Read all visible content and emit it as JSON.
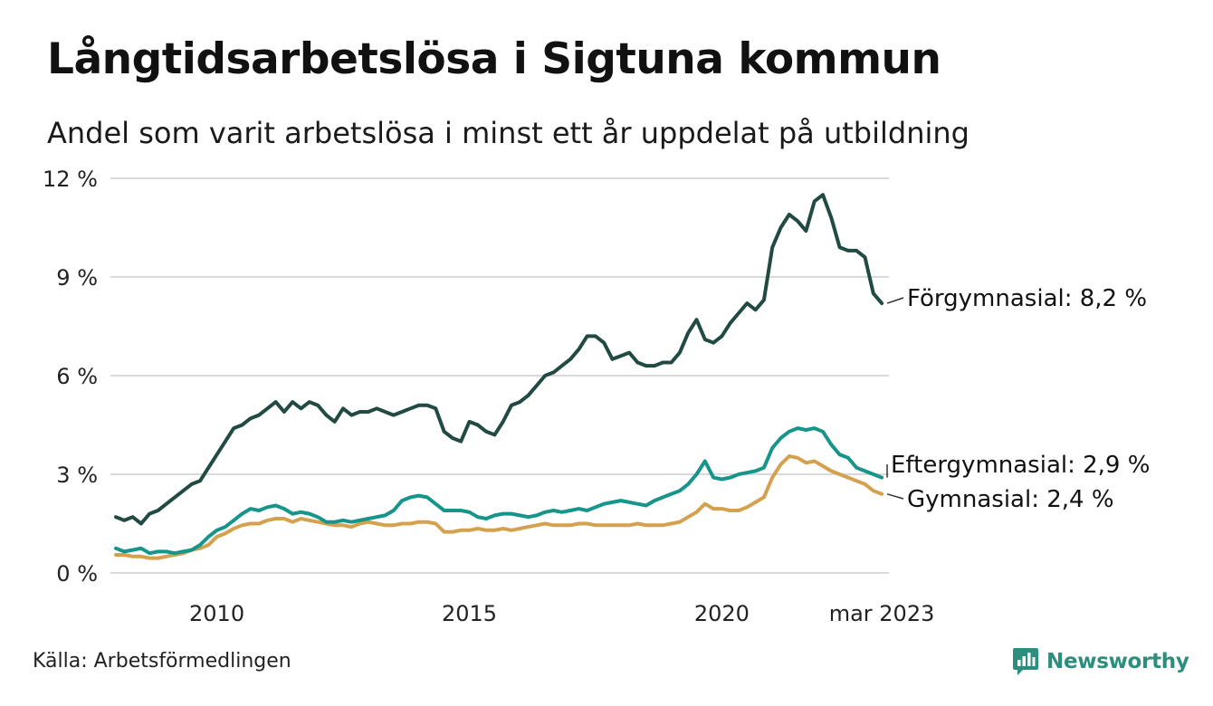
{
  "title": "Långtidsarbetslösa i Sigtuna kommun",
  "subtitle": "Andel som varit arbetslösa i minst ett år uppdelat på utbildning",
  "source": "Källa: Arbetsförmedlingen",
  "brand": "Newsworthy",
  "colors": {
    "forgymnasial": "#214a43",
    "eftergymnasial": "#17958a",
    "gymnasial": "#d4a14e",
    "grid": "#d9d9d9",
    "brand": "#2c8f7e"
  },
  "chart_data": {
    "type": "line",
    "title": "Långtidsarbetslösa i Sigtuna kommun",
    "subtitle": "Andel som varit arbetslösa i minst ett år uppdelat på utbildning",
    "xlabel": "",
    "ylabel": "",
    "ylim": [
      0,
      12
    ],
    "xlim": [
      "2008-01",
      "2023-03"
    ],
    "yticks": [
      0,
      3,
      6,
      9,
      12
    ],
    "ytick_labels": [
      "0 %",
      "3 %",
      "6 %",
      "9 %",
      "12 %"
    ],
    "xticks": [
      "2010-01",
      "2015-01",
      "2020-01",
      "2023-03"
    ],
    "xtick_labels": [
      "2010",
      "2015",
      "2020",
      "mar 2023"
    ],
    "grid": true,
    "legend": "end-labels",
    "series": [
      {
        "name": "Förgymnasial",
        "end_label": "Förgymnasial: 8,2 %",
        "points": [
          [
            "2008-01",
            1.7
          ],
          [
            "2008-03",
            1.6
          ],
          [
            "2008-05",
            1.7
          ],
          [
            "2008-07",
            1.5
          ],
          [
            "2008-09",
            1.8
          ],
          [
            "2008-11",
            1.9
          ],
          [
            "2009-01",
            2.1
          ],
          [
            "2009-03",
            2.3
          ],
          [
            "2009-05",
            2.5
          ],
          [
            "2009-07",
            2.7
          ],
          [
            "2009-09",
            2.8
          ],
          [
            "2009-11",
            3.2
          ],
          [
            "2010-01",
            3.6
          ],
          [
            "2010-03",
            4.0
          ],
          [
            "2010-05",
            4.4
          ],
          [
            "2010-07",
            4.5
          ],
          [
            "2010-09",
            4.7
          ],
          [
            "2010-11",
            4.8
          ],
          [
            "2011-01",
            5.0
          ],
          [
            "2011-03",
            5.2
          ],
          [
            "2011-05",
            4.9
          ],
          [
            "2011-07",
            5.2
          ],
          [
            "2011-09",
            5.0
          ],
          [
            "2011-11",
            5.2
          ],
          [
            "2012-01",
            5.1
          ],
          [
            "2012-03",
            4.8
          ],
          [
            "2012-05",
            4.6
          ],
          [
            "2012-07",
            5.0
          ],
          [
            "2012-09",
            4.8
          ],
          [
            "2012-11",
            4.9
          ],
          [
            "2013-01",
            4.9
          ],
          [
            "2013-03",
            5.0
          ],
          [
            "2013-05",
            4.9
          ],
          [
            "2013-07",
            4.8
          ],
          [
            "2013-09",
            4.9
          ],
          [
            "2013-11",
            5.0
          ],
          [
            "2014-01",
            5.1
          ],
          [
            "2014-03",
            5.1
          ],
          [
            "2014-05",
            5.0
          ],
          [
            "2014-07",
            4.3
          ],
          [
            "2014-09",
            4.1
          ],
          [
            "2014-11",
            4.0
          ],
          [
            "2015-01",
            4.6
          ],
          [
            "2015-03",
            4.5
          ],
          [
            "2015-05",
            4.3
          ],
          [
            "2015-07",
            4.2
          ],
          [
            "2015-09",
            4.6
          ],
          [
            "2015-11",
            5.1
          ],
          [
            "2016-01",
            5.2
          ],
          [
            "2016-03",
            5.4
          ],
          [
            "2016-05",
            5.7
          ],
          [
            "2016-07",
            6.0
          ],
          [
            "2016-09",
            6.1
          ],
          [
            "2016-11",
            6.3
          ],
          [
            "2017-01",
            6.5
          ],
          [
            "2017-03",
            6.8
          ],
          [
            "2017-05",
            7.2
          ],
          [
            "2017-07",
            7.2
          ],
          [
            "2017-09",
            7.0
          ],
          [
            "2017-11",
            6.5
          ],
          [
            "2018-01",
            6.6
          ],
          [
            "2018-03",
            6.7
          ],
          [
            "2018-05",
            6.4
          ],
          [
            "2018-07",
            6.3
          ],
          [
            "2018-09",
            6.3
          ],
          [
            "2018-11",
            6.4
          ],
          [
            "2019-01",
            6.4
          ],
          [
            "2019-03",
            6.7
          ],
          [
            "2019-05",
            7.3
          ],
          [
            "2019-07",
            7.7
          ],
          [
            "2019-09",
            7.1
          ],
          [
            "2019-11",
            7.0
          ],
          [
            "2020-01",
            7.2
          ],
          [
            "2020-03",
            7.6
          ],
          [
            "2020-05",
            7.9
          ],
          [
            "2020-07",
            8.2
          ],
          [
            "2020-09",
            8.0
          ],
          [
            "2020-11",
            8.3
          ],
          [
            "2021-01",
            9.9
          ],
          [
            "2021-03",
            10.5
          ],
          [
            "2021-05",
            10.9
          ],
          [
            "2021-07",
            10.7
          ],
          [
            "2021-09",
            10.4
          ],
          [
            "2021-11",
            11.3
          ],
          [
            "2022-01",
            11.5
          ],
          [
            "2022-03",
            10.8
          ],
          [
            "2022-05",
            9.9
          ],
          [
            "2022-07",
            9.8
          ],
          [
            "2022-09",
            9.8
          ],
          [
            "2022-11",
            9.6
          ],
          [
            "2023-01",
            8.5
          ],
          [
            "2023-03",
            8.2
          ]
        ]
      },
      {
        "name": "Eftergymnasial",
        "end_label": "Eftergymnasial: 2,9 %",
        "points": [
          [
            "2008-01",
            0.75
          ],
          [
            "2008-03",
            0.65
          ],
          [
            "2008-05",
            0.7
          ],
          [
            "2008-07",
            0.75
          ],
          [
            "2008-09",
            0.6
          ],
          [
            "2008-11",
            0.65
          ],
          [
            "2009-01",
            0.65
          ],
          [
            "2009-03",
            0.6
          ],
          [
            "2009-05",
            0.65
          ],
          [
            "2009-07",
            0.7
          ],
          [
            "2009-09",
            0.85
          ],
          [
            "2009-11",
            1.1
          ],
          [
            "2010-01",
            1.3
          ],
          [
            "2010-03",
            1.4
          ],
          [
            "2010-05",
            1.6
          ],
          [
            "2010-07",
            1.8
          ],
          [
            "2010-09",
            1.95
          ],
          [
            "2010-11",
            1.9
          ],
          [
            "2011-01",
            2.0
          ],
          [
            "2011-03",
            2.05
          ],
          [
            "2011-05",
            1.95
          ],
          [
            "2011-07",
            1.8
          ],
          [
            "2011-09",
            1.85
          ],
          [
            "2011-11",
            1.8
          ],
          [
            "2012-01",
            1.7
          ],
          [
            "2012-03",
            1.55
          ],
          [
            "2012-05",
            1.55
          ],
          [
            "2012-07",
            1.6
          ],
          [
            "2012-09",
            1.55
          ],
          [
            "2012-11",
            1.6
          ],
          [
            "2013-01",
            1.65
          ],
          [
            "2013-03",
            1.7
          ],
          [
            "2013-05",
            1.75
          ],
          [
            "2013-07",
            1.9
          ],
          [
            "2013-09",
            2.2
          ],
          [
            "2013-11",
            2.3
          ],
          [
            "2014-01",
            2.35
          ],
          [
            "2014-03",
            2.3
          ],
          [
            "2014-05",
            2.1
          ],
          [
            "2014-07",
            1.9
          ],
          [
            "2014-09",
            1.9
          ],
          [
            "2014-11",
            1.9
          ],
          [
            "2015-01",
            1.85
          ],
          [
            "2015-03",
            1.7
          ],
          [
            "2015-05",
            1.65
          ],
          [
            "2015-07",
            1.75
          ],
          [
            "2015-09",
            1.8
          ],
          [
            "2015-11",
            1.8
          ],
          [
            "2016-01",
            1.75
          ],
          [
            "2016-03",
            1.7
          ],
          [
            "2016-05",
            1.75
          ],
          [
            "2016-07",
            1.85
          ],
          [
            "2016-09",
            1.9
          ],
          [
            "2016-11",
            1.85
          ],
          [
            "2017-01",
            1.9
          ],
          [
            "2017-03",
            1.95
          ],
          [
            "2017-05",
            1.9
          ],
          [
            "2017-07",
            2.0
          ],
          [
            "2017-09",
            2.1
          ],
          [
            "2017-11",
            2.15
          ],
          [
            "2018-01",
            2.2
          ],
          [
            "2018-03",
            2.15
          ],
          [
            "2018-05",
            2.1
          ],
          [
            "2018-07",
            2.05
          ],
          [
            "2018-09",
            2.2
          ],
          [
            "2018-11",
            2.3
          ],
          [
            "2019-01",
            2.4
          ],
          [
            "2019-03",
            2.5
          ],
          [
            "2019-05",
            2.7
          ],
          [
            "2019-07",
            3.0
          ],
          [
            "2019-09",
            3.4
          ],
          [
            "2019-11",
            2.9
          ],
          [
            "2020-01",
            2.85
          ],
          [
            "2020-03",
            2.9
          ],
          [
            "2020-05",
            3.0
          ],
          [
            "2020-07",
            3.05
          ],
          [
            "2020-09",
            3.1
          ],
          [
            "2020-11",
            3.2
          ],
          [
            "2021-01",
            3.8
          ],
          [
            "2021-03",
            4.1
          ],
          [
            "2021-05",
            4.3
          ],
          [
            "2021-07",
            4.4
          ],
          [
            "2021-09",
            4.35
          ],
          [
            "2021-11",
            4.4
          ],
          [
            "2022-01",
            4.3
          ],
          [
            "2022-03",
            3.9
          ],
          [
            "2022-05",
            3.6
          ],
          [
            "2022-07",
            3.5
          ],
          [
            "2022-09",
            3.2
          ],
          [
            "2022-11",
            3.1
          ],
          [
            "2023-01",
            3.0
          ],
          [
            "2023-03",
            2.9
          ]
        ]
      },
      {
        "name": "Gymnasial",
        "end_label": "Gymnasial: 2,4 %",
        "points": [
          [
            "2008-01",
            0.55
          ],
          [
            "2008-03",
            0.55
          ],
          [
            "2008-05",
            0.5
          ],
          [
            "2008-07",
            0.5
          ],
          [
            "2008-09",
            0.45
          ],
          [
            "2008-11",
            0.45
          ],
          [
            "2009-01",
            0.5
          ],
          [
            "2009-03",
            0.55
          ],
          [
            "2009-05",
            0.6
          ],
          [
            "2009-07",
            0.7
          ],
          [
            "2009-09",
            0.75
          ],
          [
            "2009-11",
            0.85
          ],
          [
            "2010-01",
            1.1
          ],
          [
            "2010-03",
            1.2
          ],
          [
            "2010-05",
            1.35
          ],
          [
            "2010-07",
            1.45
          ],
          [
            "2010-09",
            1.5
          ],
          [
            "2010-11",
            1.5
          ],
          [
            "2011-01",
            1.6
          ],
          [
            "2011-03",
            1.65
          ],
          [
            "2011-05",
            1.65
          ],
          [
            "2011-07",
            1.55
          ],
          [
            "2011-09",
            1.65
          ],
          [
            "2011-11",
            1.6
          ],
          [
            "2012-01",
            1.55
          ],
          [
            "2012-03",
            1.5
          ],
          [
            "2012-05",
            1.45
          ],
          [
            "2012-07",
            1.45
          ],
          [
            "2012-09",
            1.4
          ],
          [
            "2012-11",
            1.5
          ],
          [
            "2013-01",
            1.55
          ],
          [
            "2013-03",
            1.5
          ],
          [
            "2013-05",
            1.45
          ],
          [
            "2013-07",
            1.45
          ],
          [
            "2013-09",
            1.5
          ],
          [
            "2013-11",
            1.5
          ],
          [
            "2014-01",
            1.55
          ],
          [
            "2014-03",
            1.55
          ],
          [
            "2014-05",
            1.5
          ],
          [
            "2014-07",
            1.25
          ],
          [
            "2014-09",
            1.25
          ],
          [
            "2014-11",
            1.3
          ],
          [
            "2015-01",
            1.3
          ],
          [
            "2015-03",
            1.35
          ],
          [
            "2015-05",
            1.3
          ],
          [
            "2015-07",
            1.3
          ],
          [
            "2015-09",
            1.35
          ],
          [
            "2015-11",
            1.3
          ],
          [
            "2016-01",
            1.35
          ],
          [
            "2016-03",
            1.4
          ],
          [
            "2016-05",
            1.45
          ],
          [
            "2016-07",
            1.5
          ],
          [
            "2016-09",
            1.45
          ],
          [
            "2016-11",
            1.45
          ],
          [
            "2017-01",
            1.45
          ],
          [
            "2017-03",
            1.5
          ],
          [
            "2017-05",
            1.5
          ],
          [
            "2017-07",
            1.45
          ],
          [
            "2017-09",
            1.45
          ],
          [
            "2017-11",
            1.45
          ],
          [
            "2018-01",
            1.45
          ],
          [
            "2018-03",
            1.45
          ],
          [
            "2018-05",
            1.5
          ],
          [
            "2018-07",
            1.45
          ],
          [
            "2018-09",
            1.45
          ],
          [
            "2018-11",
            1.45
          ],
          [
            "2019-01",
            1.5
          ],
          [
            "2019-03",
            1.55
          ],
          [
            "2019-05",
            1.7
          ],
          [
            "2019-07",
            1.85
          ],
          [
            "2019-09",
            2.1
          ],
          [
            "2019-11",
            1.95
          ],
          [
            "2020-01",
            1.95
          ],
          [
            "2020-03",
            1.9
          ],
          [
            "2020-05",
            1.9
          ],
          [
            "2020-07",
            2.0
          ],
          [
            "2020-09",
            2.15
          ],
          [
            "2020-11",
            2.3
          ],
          [
            "2021-01",
            2.9
          ],
          [
            "2021-03",
            3.3
          ],
          [
            "2021-05",
            3.55
          ],
          [
            "2021-07",
            3.5
          ],
          [
            "2021-09",
            3.35
          ],
          [
            "2021-11",
            3.4
          ],
          [
            "2022-01",
            3.25
          ],
          [
            "2022-03",
            3.1
          ],
          [
            "2022-05",
            3.0
          ],
          [
            "2022-07",
            2.9
          ],
          [
            "2022-09",
            2.8
          ],
          [
            "2022-11",
            2.7
          ],
          [
            "2023-01",
            2.5
          ],
          [
            "2023-03",
            2.4
          ]
        ]
      }
    ]
  }
}
